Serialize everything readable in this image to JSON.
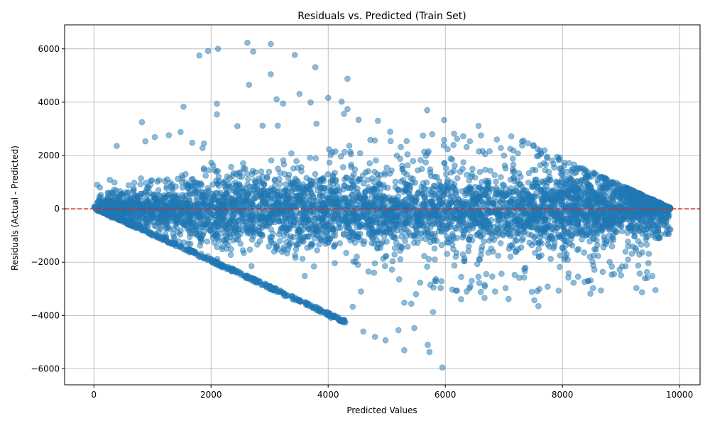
{
  "chart_data": {
    "type": "scatter",
    "title": "Residuals vs. Predicted (Train Set)",
    "xlabel": "Predicted Values",
    "ylabel": "Residuals (Actual - Predicted)",
    "xlim": [
      -500,
      10350
    ],
    "ylim": [
      -6600,
      6900
    ],
    "xticks": [
      0,
      2000,
      4000,
      6000,
      8000,
      10000
    ],
    "yticks": [
      -6000,
      -4000,
      -2000,
      0,
      2000,
      4000,
      6000
    ],
    "xtick_labels": [
      "0",
      "2000",
      "4000",
      "6000",
      "8000",
      "10000"
    ],
    "ytick_labels": [
      "−6000",
      "−4000",
      "−2000",
      "0",
      "2000",
      "4000",
      "6000"
    ],
    "grid": true,
    "reference_line": {
      "y": 0,
      "style": "dashed",
      "color": "#d62728"
    },
    "marker_color": "#1f77b4",
    "marker_alpha": 0.5,
    "series": [
      {
        "values_description": "dense cloud bounded below by residual = -predicted and above by residual = 9900 - predicted",
        "points": [
          [
            1800,
            5750
          ],
          [
            1950,
            5920
          ],
          [
            2120,
            6000
          ],
          [
            2620,
            6230
          ],
          [
            2720,
            5900
          ],
          [
            3020,
            6180
          ],
          [
            2650,
            4650
          ],
          [
            3020,
            5050
          ],
          [
            3430,
            5770
          ],
          [
            3780,
            5310
          ],
          [
            4330,
            4880
          ],
          [
            1530,
            3830
          ],
          [
            2100,
            3940
          ],
          [
            2100,
            3540
          ],
          [
            3120,
            4110
          ],
          [
            3230,
            3950
          ],
          [
            3510,
            4310
          ],
          [
            3700,
            3990
          ],
          [
            4000,
            4160
          ],
          [
            4230,
            4020
          ],
          [
            4330,
            3740
          ],
          [
            5690,
            3700
          ],
          [
            5980,
            3330
          ],
          [
            820,
            3250
          ],
          [
            390,
            2360
          ],
          [
            880,
            2530
          ],
          [
            1040,
            2690
          ],
          [
            1280,
            2760
          ],
          [
            1480,
            2880
          ],
          [
            1680,
            2480
          ],
          [
            1880,
            2450
          ],
          [
            2450,
            3100
          ],
          [
            2880,
            3120
          ],
          [
            3140,
            3120
          ],
          [
            3800,
            3190
          ],
          [
            4520,
            3340
          ],
          [
            4850,
            3300
          ],
          [
            5060,
            2890
          ],
          [
            5620,
            2750
          ],
          [
            5980,
            2580
          ],
          [
            6420,
            2530
          ],
          [
            6880,
            2600
          ],
          [
            7240,
            2080
          ],
          [
            7590,
            1990
          ],
          [
            8200,
            1660
          ],
          [
            8720,
            1090
          ],
          [
            4270,
            3560
          ],
          [
            300,
            -330
          ],
          [
            600,
            -600
          ],
          [
            1000,
            -1000
          ],
          [
            1400,
            -1400
          ],
          [
            1800,
            -1800
          ],
          [
            2200,
            -2200
          ],
          [
            2600,
            -2600
          ],
          [
            3000,
            -3000
          ],
          [
            3400,
            -3400
          ],
          [
            3800,
            -3800
          ],
          [
            4200,
            -4200
          ],
          [
            4600,
            -4600
          ],
          [
            4980,
            -4930
          ],
          [
            5200,
            -4550
          ],
          [
            5300,
            -5300
          ],
          [
            5700,
            -5100
          ],
          [
            5730,
            -5370
          ],
          [
            5950,
            -5950
          ],
          [
            4800,
            -4800
          ],
          [
            5470,
            -4470
          ],
          [
            3250,
            -3260
          ],
          [
            4050,
            -4090
          ],
          [
            2950,
            -2950
          ],
          [
            5300,
            -3520
          ],
          [
            5420,
            -3560
          ],
          [
            5790,
            -3870
          ],
          [
            6270,
            -3390
          ],
          [
            6430,
            -2910
          ],
          [
            6670,
            -3340
          ],
          [
            6850,
            -3100
          ],
          [
            7080,
            -3380
          ],
          [
            7520,
            -3430
          ],
          [
            7590,
            -3650
          ],
          [
            8190,
            -2770
          ],
          [
            8470,
            -1800
          ],
          [
            8370,
            -1640
          ],
          [
            8720,
            -1290
          ],
          [
            4560,
            -3100
          ],
          [
            4420,
            -3670
          ],
          [
            3600,
            -2520
          ],
          [
            5920,
            -2970
          ],
          [
            5500,
            -3200
          ],
          [
            6700,
            -2450
          ],
          [
            7350,
            -2250
          ],
          [
            7800,
            -1880
          ],
          [
            8000,
            -1480
          ]
        ]
      }
    ]
  }
}
